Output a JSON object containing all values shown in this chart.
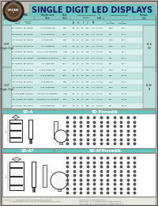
{
  "title": "SINGLE DIGIT LED DISPLAYS",
  "bg_color": "#c8c0b8",
  "header_bg": "#68c8c0",
  "table_bg": "#a8dcd8",
  "row_alt1": "#d8f0ee",
  "row_alt2": "#c0e4e0",
  "section_cell": "#b8dcd8",
  "white": "#ffffff",
  "dark": "#1a1a1a",
  "logo_outer": "#302820",
  "logo_inner": "#584030",
  "title_color": "#101060",
  "rows_section1": [
    [
      "BS-A303RD",
      "BS-A303RD",
      "0.3 R Bright red",
      "RED",
      "20",
      "2.1",
      "1.1",
      "500",
      "6 8",
      "1.7 2.5",
      "1000",
      "BC-A"
    ],
    [
      "BS-A303GD",
      "BS-A303GD",
      "0.3 R diffused",
      "GRN",
      "20",
      "2.1",
      "1.1",
      "500",
      "4 6",
      "2.0 2.8",
      "800",
      "BC-A"
    ],
    [
      "BS-A303SD",
      "BS-A303SD",
      "0.3 diffused",
      "RED",
      "20",
      "2.1",
      "1.1",
      "500",
      "6 8",
      "1.7 2.5",
      "1000",
      "BC-A"
    ],
    [
      "BS-A303YD",
      "BS-A303YD",
      "0.3 Y diffused",
      "YLW",
      "20",
      "2.1",
      "1.1",
      "500",
      "4 6",
      "2.0 2.8",
      "1200",
      "BC-A"
    ],
    [
      "BS-A303OD",
      "BS-A303OD",
      "0.3 O Yr-Grn diffused",
      "YGR",
      "20",
      "2.1",
      "1.1",
      "500",
      "4 6",
      "2.0 2.8",
      "800",
      "BC-A"
    ],
    [
      "BS-A303BD",
      "BS-A303BD",
      "Combined 0.3 Bg Blue",
      "BLU",
      "20",
      "3.5",
      "1.1",
      "150",
      "4 6",
      "4.0 5.5",
      "800",
      "BC-A"
    ],
    [
      "BS-A303WD",
      "BS-A303WD",
      "0.3 O diffused",
      "ORG",
      "20",
      "2.1",
      "1.1",
      "500",
      "4 6",
      "2.0 2.8",
      "800",
      "BC-A"
    ]
  ],
  "rows_section2": [
    [
      "BS-AF05RD",
      "BS-AF05RD",
      "0.39 R Bright red",
      "RED",
      "20",
      "2.1",
      "1.1",
      "500",
      "6 8",
      "1.7 2.5",
      "1000",
      "BC-AF"
    ],
    [
      "BS-AF05GD",
      "BS-AF05GD",
      "0.39 R diffused",
      "GRN",
      "20",
      "2.1",
      "1.1",
      "500",
      "4 6",
      "2.0 2.8",
      "800",
      "BC-AF"
    ],
    [
      "BS-AF05SD",
      "BS-AF05SD",
      "0.39 diffused",
      "RED",
      "20",
      "2.1",
      "1.1",
      "500",
      "6 8",
      "1.7 2.5",
      "1000",
      "BC-AF"
    ],
    [
      "BS-AF05YD",
      "BS-AF05YD",
      "0.39 Y diffused",
      "YLW",
      "20",
      "2.1",
      "1.1",
      "500",
      "4 6",
      "2.0 2.8",
      "1200",
      "BC-AF"
    ],
    [
      "BS-AF05HD/Gr",
      "BS-AF05HD/Gr",
      "0.39 HE Y-Grn diffused",
      "YGR",
      "20",
      "2.1",
      "1.1",
      "500",
      "4 6",
      "2.0 2.8",
      "800",
      "BC-AF"
    ],
    [
      "BS-AF05BD",
      "BS-AF05BD",
      "Combined 0.39 Bg Blue",
      "BLU",
      "20",
      "3.5",
      "1.1",
      "150",
      "4 6",
      "4.0 5.5",
      "800",
      "BC-AF"
    ],
    [
      "BS-AF05OD",
      "BS-AF05OD",
      "0.39 O diffused",
      "ORG",
      "20",
      "2.1",
      "1.1",
      "500",
      "4 6",
      "2.0 2.8",
      "800",
      "BC-AF"
    ]
  ],
  "footer_company": "Yallow Stone corp.",
  "footer_url": "www.yellowstonecorp.com"
}
